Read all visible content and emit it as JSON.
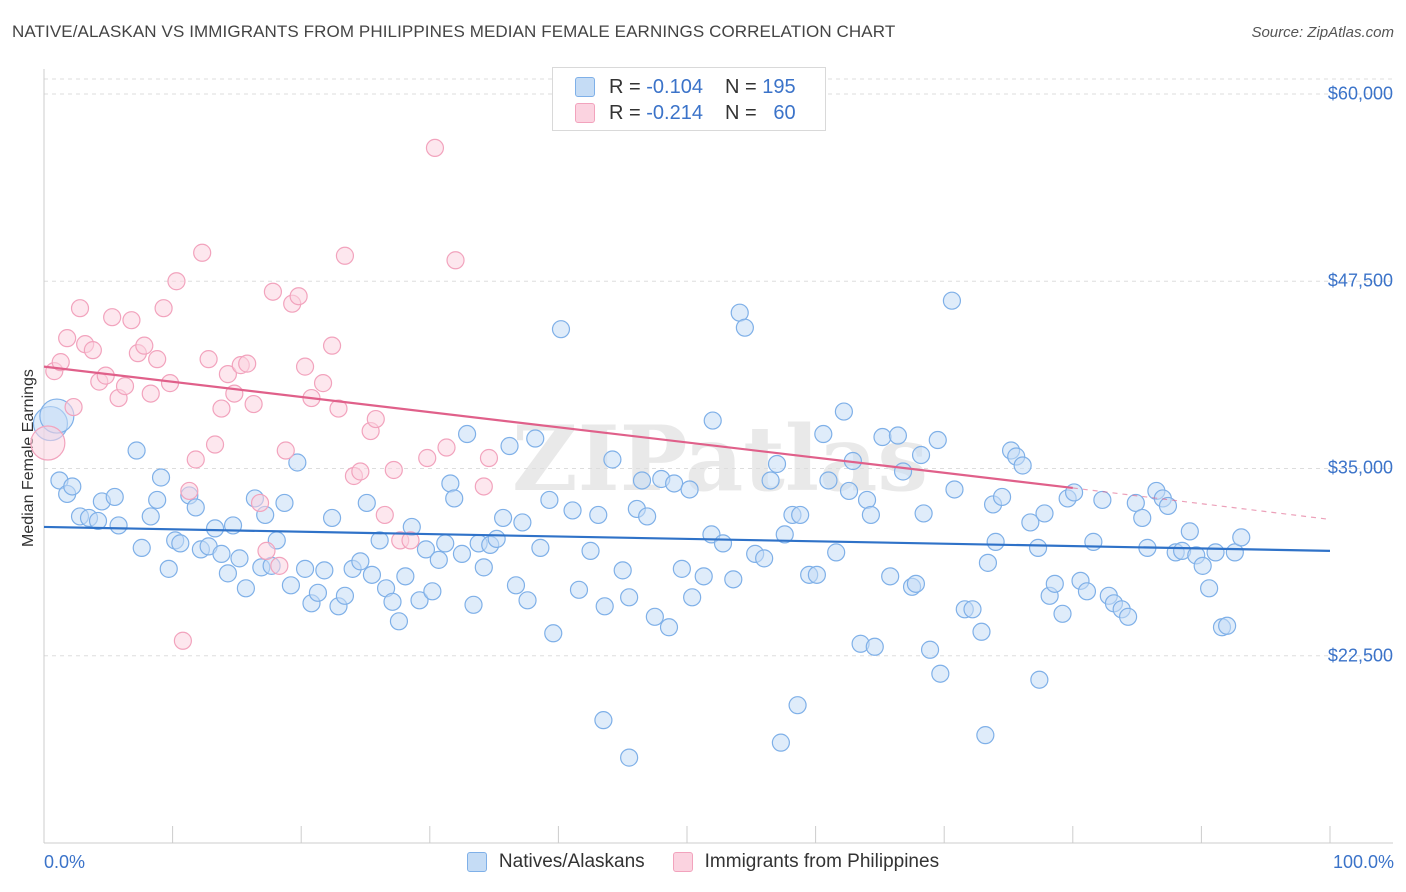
{
  "header": {
    "title": "NATIVE/ALASKAN VS IMMIGRANTS FROM PHILIPPINES MEDIAN FEMALE EARNINGS CORRELATION CHART",
    "source": "Source: ZipAtlas.com"
  },
  "watermark": "ZIPatlas",
  "legend_top": {
    "rows": [
      {
        "r_label": "R =",
        "r_value": "-0.104",
        "n_label": "N =",
        "n_value": "195",
        "color": "#7fb0e8"
      },
      {
        "r_label": "R =",
        "r_value": "-0.214",
        "n_label": "N =",
        "n_value": "60",
        "color": "#f2a3bd"
      }
    ]
  },
  "legend_bottom": {
    "items": [
      {
        "label": "Natives/Alaskans",
        "color": "#7fb0e8"
      },
      {
        "label": "Immigrants from Philippines",
        "color": "#f2a3bd"
      }
    ]
  },
  "chart_data": {
    "type": "scatter",
    "title": "NATIVE/ALASKAN VS IMMIGRANTS FROM PHILIPPINES MEDIAN FEMALE EARNINGS CORRELATION CHART",
    "xlabel": "",
    "ylabel": "Median Female Earnings",
    "xlim": [
      0,
      100
    ],
    "ylim": [
      10000,
      61000
    ],
    "x_tick_labels": [
      "0.0%",
      "100.0%"
    ],
    "y_ticks": [
      22500,
      35000,
      47500,
      60000
    ],
    "y_tick_labels": [
      "$22,500",
      "$35,000",
      "$47,500",
      "$60,000"
    ],
    "grid": true,
    "legend_position": "bottom",
    "series": [
      {
        "name": "Natives/Alaskans",
        "color": "#7fb0e8",
        "line_color": "#2f72c8",
        "trend": {
          "x": [
            0,
            100
          ],
          "y": [
            31100,
            29500
          ]
        },
        "points": [
          [
            0.5,
            38000
          ],
          [
            1,
            38500
          ],
          [
            1.2,
            34200
          ],
          [
            1.8,
            33300
          ],
          [
            2.2,
            33800
          ],
          [
            2.8,
            31800
          ],
          [
            3.5,
            31700
          ],
          [
            4.2,
            31500
          ],
          [
            4.5,
            32800
          ],
          [
            5.5,
            33100
          ],
          [
            5.8,
            31200
          ],
          [
            7.2,
            36200
          ],
          [
            7.6,
            29700
          ],
          [
            8.3,
            31800
          ],
          [
            8.8,
            32900
          ],
          [
            9.1,
            34400
          ],
          [
            9.7,
            28300
          ],
          [
            10.2,
            30200
          ],
          [
            10.6,
            30000
          ],
          [
            11.3,
            33200
          ],
          [
            11.8,
            32400
          ],
          [
            12.2,
            29600
          ],
          [
            12.8,
            29800
          ],
          [
            13.3,
            31000
          ],
          [
            13.8,
            29300
          ],
          [
            14.3,
            28000
          ],
          [
            14.7,
            31200
          ],
          [
            15.2,
            29000
          ],
          [
            15.7,
            27000
          ],
          [
            16.4,
            33000
          ],
          [
            16.9,
            28400
          ],
          [
            17.2,
            31900
          ],
          [
            17.7,
            28500
          ],
          [
            18.1,
            30200
          ],
          [
            18.7,
            32700
          ],
          [
            19.2,
            27200
          ],
          [
            19.7,
            35400
          ],
          [
            20.3,
            28300
          ],
          [
            20.8,
            26000
          ],
          [
            21.3,
            26700
          ],
          [
            21.8,
            28200
          ],
          [
            22.4,
            31700
          ],
          [
            22.9,
            25800
          ],
          [
            23.4,
            26500
          ],
          [
            24.0,
            28300
          ],
          [
            24.6,
            28800
          ],
          [
            25.1,
            32700
          ],
          [
            25.5,
            27900
          ],
          [
            26.1,
            30200
          ],
          [
            26.6,
            27000
          ],
          [
            27.1,
            26100
          ],
          [
            27.6,
            24800
          ],
          [
            28.1,
            27800
          ],
          [
            28.6,
            31100
          ],
          [
            29.2,
            26200
          ],
          [
            29.7,
            29600
          ],
          [
            30.2,
            26800
          ],
          [
            30.7,
            28900
          ],
          [
            31.2,
            30000
          ],
          [
            31.6,
            34000
          ],
          [
            31.9,
            33000
          ],
          [
            32.5,
            29300
          ],
          [
            32.9,
            37300
          ],
          [
            33.4,
            25900
          ],
          [
            33.8,
            30000
          ],
          [
            34.2,
            28400
          ],
          [
            34.7,
            29900
          ],
          [
            35.2,
            30300
          ],
          [
            35.7,
            31700
          ],
          [
            36.2,
            36500
          ],
          [
            36.7,
            27200
          ],
          [
            37.2,
            31400
          ],
          [
            37.6,
            26200
          ],
          [
            38.2,
            37000
          ],
          [
            38.6,
            29700
          ],
          [
            39.3,
            32900
          ],
          [
            39.6,
            24000
          ],
          [
            40.2,
            44300
          ],
          [
            41.1,
            32200
          ],
          [
            41.6,
            26900
          ],
          [
            42.5,
            29500
          ],
          [
            43.1,
            31900
          ],
          [
            43.6,
            25800
          ],
          [
            44.2,
            35600
          ],
          [
            45.0,
            28200
          ],
          [
            45.5,
            26400
          ],
          [
            46.1,
            32300
          ],
          [
            46.5,
            34200
          ],
          [
            46.9,
            31800
          ],
          [
            47.5,
            25100
          ],
          [
            48.0,
            34300
          ],
          [
            48.6,
            24400
          ],
          [
            49.0,
            34000
          ],
          [
            49.6,
            28300
          ],
          [
            50.2,
            33600
          ],
          [
            50.4,
            26400
          ],
          [
            51.3,
            27800
          ],
          [
            51.9,
            30600
          ],
          [
            52.0,
            38200
          ],
          [
            52.8,
            30000
          ],
          [
            53.6,
            27600
          ],
          [
            54.1,
            45400
          ],
          [
            54.5,
            44400
          ],
          [
            55.3,
            29300
          ],
          [
            56.0,
            29000
          ],
          [
            56.5,
            34200
          ],
          [
            57.0,
            35300
          ],
          [
            57.6,
            30600
          ],
          [
            58.2,
            31900
          ],
          [
            58.8,
            31900
          ],
          [
            59.5,
            27900
          ],
          [
            60.1,
            27900
          ],
          [
            60.6,
            37300
          ],
          [
            61.0,
            34200
          ],
          [
            61.6,
            29400
          ],
          [
            62.2,
            38800
          ],
          [
            62.6,
            33500
          ],
          [
            62.9,
            35500
          ],
          [
            63.5,
            23300
          ],
          [
            64.0,
            32900
          ],
          [
            64.3,
            31900
          ],
          [
            64.6,
            23100
          ],
          [
            65.2,
            37100
          ],
          [
            65.8,
            27800
          ],
          [
            66.4,
            37200
          ],
          [
            66.8,
            34800
          ],
          [
            67.5,
            27100
          ],
          [
            67.8,
            27300
          ],
          [
            68.4,
            32000
          ],
          [
            68.9,
            22900
          ],
          [
            69.5,
            36900
          ],
          [
            70.6,
            46200
          ],
          [
            70.8,
            33600
          ],
          [
            71.6,
            25600
          ],
          [
            72.2,
            25600
          ],
          [
            72.9,
            24100
          ],
          [
            73.4,
            28700
          ],
          [
            73.8,
            32600
          ],
          [
            74.0,
            30100
          ],
          [
            74.5,
            33100
          ],
          [
            75.2,
            36200
          ],
          [
            75.6,
            35800
          ],
          [
            76.1,
            35200
          ],
          [
            76.7,
            31400
          ],
          [
            77.3,
            29700
          ],
          [
            77.8,
            32000
          ],
          [
            78.2,
            26500
          ],
          [
            78.6,
            27300
          ],
          [
            79.2,
            25300
          ],
          [
            79.6,
            33000
          ],
          [
            80.1,
            33400
          ],
          [
            80.6,
            27500
          ],
          [
            81.1,
            26800
          ],
          [
            81.6,
            30100
          ],
          [
            82.3,
            32900
          ],
          [
            82.8,
            26500
          ],
          [
            83.2,
            26000
          ],
          [
            83.8,
            25600
          ],
          [
            84.3,
            25100
          ],
          [
            84.9,
            32700
          ],
          [
            85.4,
            31700
          ],
          [
            85.8,
            29700
          ],
          [
            86.5,
            33500
          ],
          [
            87.0,
            33000
          ],
          [
            87.4,
            32500
          ],
          [
            88.0,
            29400
          ],
          [
            88.5,
            29500
          ],
          [
            89.1,
            30800
          ],
          [
            89.6,
            29200
          ],
          [
            90.1,
            28500
          ],
          [
            90.6,
            27000
          ],
          [
            91.1,
            29400
          ],
          [
            91.6,
            24400
          ],
          [
            92.0,
            24500
          ],
          [
            92.6,
            29400
          ],
          [
            93.1,
            30400
          ],
          [
            43.5,
            18200
          ],
          [
            45.5,
            15700
          ],
          [
            57.3,
            16700
          ],
          [
            58.6,
            19200
          ],
          [
            69.7,
            21300
          ],
          [
            73.2,
            17200
          ],
          [
            77.4,
            20900
          ],
          [
            68.2,
            35900
          ]
        ]
      },
      {
        "name": "Immigrants from Philippines",
        "color": "#f2a3bd",
        "line_color": "#e0608a",
        "trend": {
          "x": [
            0,
            80
          ],
          "y": [
            41800,
            33700
          ]
        },
        "trend_dashed": {
          "x": [
            80,
            100
          ],
          "y": [
            33700,
            31600
          ]
        },
        "points": [
          [
            0.3,
            36700
          ],
          [
            0.8,
            41500
          ],
          [
            1.3,
            42100
          ],
          [
            1.8,
            43700
          ],
          [
            2.3,
            39100
          ],
          [
            2.8,
            45700
          ],
          [
            3.2,
            43300
          ],
          [
            3.8,
            42900
          ],
          [
            4.3,
            40800
          ],
          [
            4.8,
            41200
          ],
          [
            5.3,
            45100
          ],
          [
            5.8,
            39700
          ],
          [
            6.3,
            40500
          ],
          [
            6.8,
            44900
          ],
          [
            7.3,
            42700
          ],
          [
            7.8,
            43200
          ],
          [
            8.3,
            40000
          ],
          [
            8.8,
            42300
          ],
          [
            9.3,
            45700
          ],
          [
            9.8,
            40700
          ],
          [
            10.3,
            47500
          ],
          [
            10.8,
            23500
          ],
          [
            11.3,
            33500
          ],
          [
            11.8,
            35600
          ],
          [
            12.3,
            49400
          ],
          [
            12.8,
            42300
          ],
          [
            13.3,
            36600
          ],
          [
            13.8,
            39000
          ],
          [
            14.3,
            41300
          ],
          [
            14.8,
            40000
          ],
          [
            15.3,
            41900
          ],
          [
            15.8,
            42000
          ],
          [
            16.3,
            39300
          ],
          [
            16.8,
            32700
          ],
          [
            17.3,
            29500
          ],
          [
            17.8,
            46800
          ],
          [
            18.3,
            28500
          ],
          [
            18.8,
            36200
          ],
          [
            19.3,
            46000
          ],
          [
            19.8,
            46500
          ],
          [
            20.3,
            41800
          ],
          [
            20.8,
            39700
          ],
          [
            21.7,
            40700
          ],
          [
            22.4,
            43200
          ],
          [
            22.9,
            39000
          ],
          [
            23.4,
            49200
          ],
          [
            24.1,
            34500
          ],
          [
            24.6,
            34800
          ],
          [
            25.4,
            37500
          ],
          [
            25.8,
            38300
          ],
          [
            26.5,
            31900
          ],
          [
            27.2,
            34900
          ],
          [
            27.7,
            30200
          ],
          [
            28.5,
            30200
          ],
          [
            29.8,
            35700
          ],
          [
            30.4,
            56400
          ],
          [
            31.3,
            36400
          ],
          [
            32.0,
            48900
          ],
          [
            34.6,
            35700
          ],
          [
            34.2,
            33800
          ]
        ]
      }
    ]
  }
}
